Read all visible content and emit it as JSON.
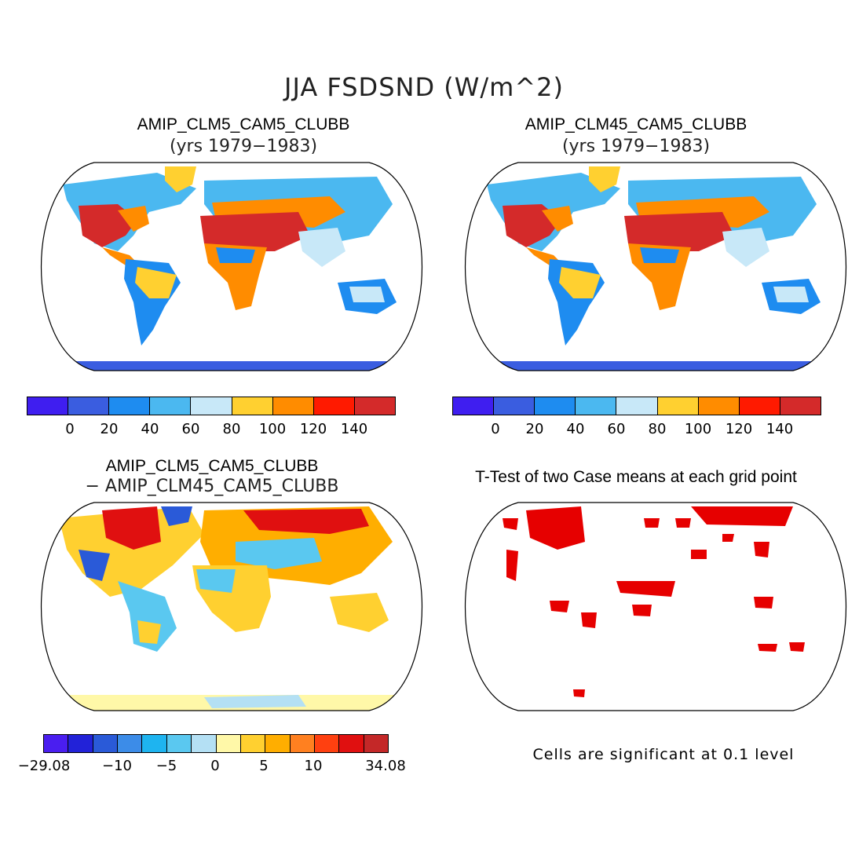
{
  "title": "JJA FSDSND (W/m^2)",
  "panels": {
    "top_left": {
      "title": "AMIP_CLM5_CAM5_CLUBB",
      "subtitle": "(yrs 1979−1983)"
    },
    "top_right": {
      "title": "AMIP_CLM45_CAM5_CLUBB",
      "subtitle": "(yrs 1979−1983)"
    },
    "bottom_left": {
      "title": "AMIP_CLM5_CAM5_CLUBB",
      "subtitle": "− AMIP_CLM45_CAM5_CLUBB"
    },
    "bottom_right": {
      "title": "T-Test of two Case means at each grid point",
      "footnote": "Cells are significant at 0.1 level"
    }
  },
  "colorbar_abs": {
    "colors": [
      "#3f1ef0",
      "#3a5de0",
      "#1e8cf0",
      "#4bb8f0",
      "#c8e8f8",
      "#ffd030",
      "#ff8c00",
      "#ff1a00",
      "#d42a2a"
    ],
    "labels": [
      "0",
      "20",
      "40",
      "60",
      "80",
      "100",
      "120",
      "140"
    ]
  },
  "colorbar_diff": {
    "colors": [
      "#4a1ef0",
      "#2222d8",
      "#2a5ad8",
      "#3c8ce8",
      "#1eb4f0",
      "#5ac8f0",
      "#b4e0f4",
      "#fff8a8",
      "#ffd030",
      "#ffae00",
      "#ff8020",
      "#ff4010",
      "#e01010",
      "#c42828"
    ],
    "labels": [
      "−29.08",
      "−10",
      "−5",
      "0",
      "5",
      "10",
      "34.08"
    ]
  },
  "significance_color": "#e60000"
}
